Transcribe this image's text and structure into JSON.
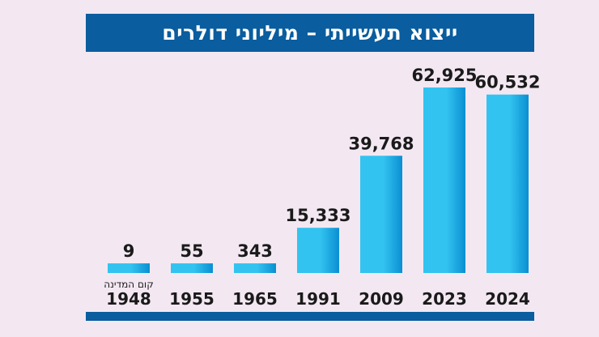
{
  "chart_data": {
    "type": "bar",
    "title": "ייצוא תעשייתי – מיליוני דולרים",
    "categories": [
      "1948",
      "1955",
      "1965",
      "1991",
      "2009",
      "2023",
      "2024"
    ],
    "values": [
      9,
      55,
      343,
      15333,
      39768,
      62925,
      60532
    ],
    "value_labels": [
      "9",
      "55",
      "343",
      "15,333",
      "39,768",
      "62,925",
      "60,532"
    ],
    "annotations": [
      {
        "category": "1948",
        "text": "קום המדינה"
      }
    ],
    "min_visible_fraction": 0.02,
    "ylim": [
      0,
      62925
    ],
    "grid": false,
    "legend": "none",
    "colors": {
      "bar_light": "#33c3f0",
      "bar_dark": "#0a8fd2",
      "accent": "#0a5d9e",
      "text": "#1a1a1a",
      "background": "#f3e8f2"
    }
  }
}
